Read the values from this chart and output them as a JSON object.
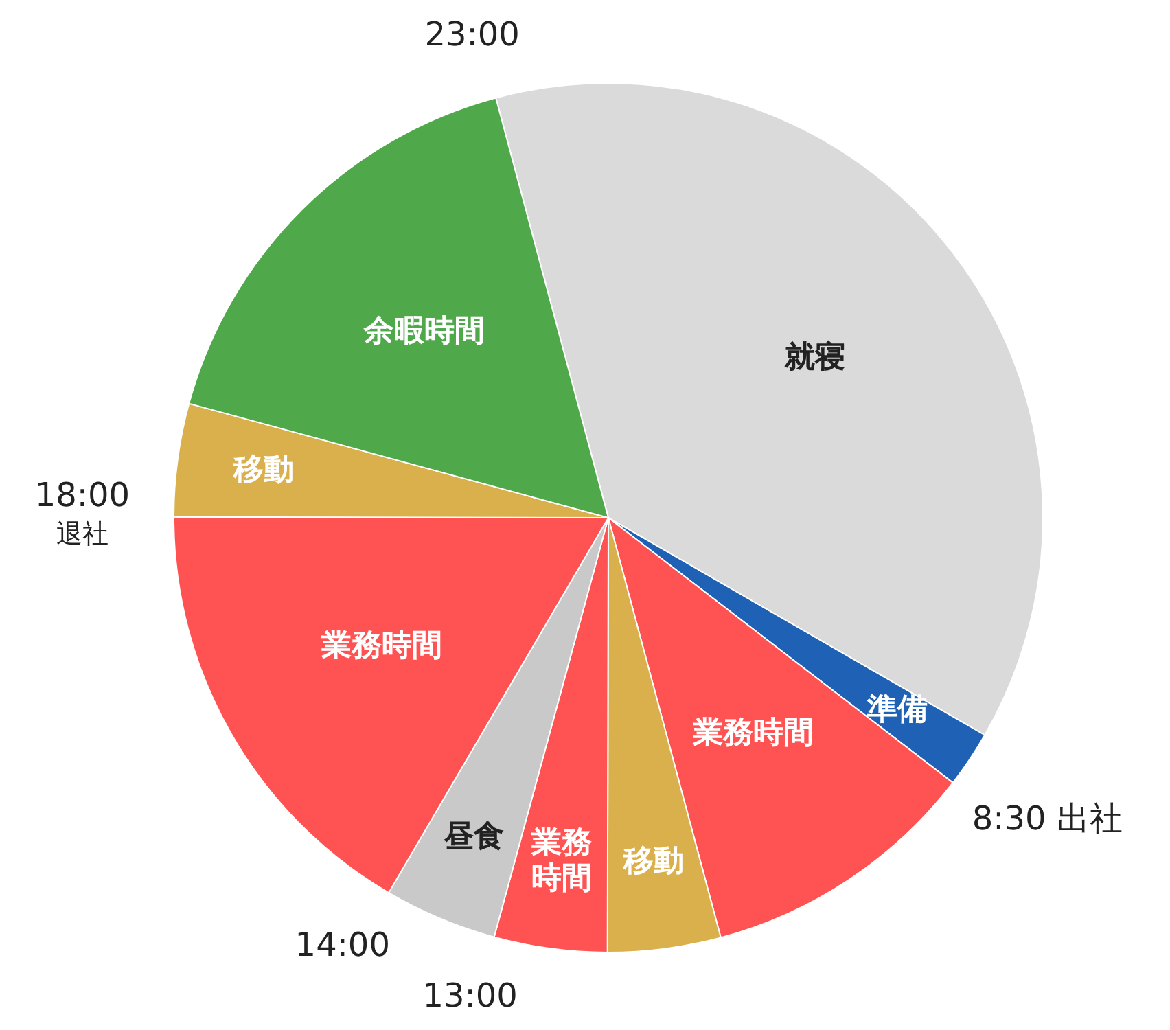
{
  "chart_data": {
    "type": "pie",
    "categories": [
      "就寝",
      "準備",
      "業務時間",
      "移動",
      "業務時間",
      "昼食",
      "業務時間",
      "移動",
      "余暇時間"
    ],
    "values": [
      37.5,
      2.1,
      10.4,
      4.2,
      4.2,
      4.2,
      16.6,
      4.2,
      16.6
    ],
    "colors": [
      "#dadada",
      "#1f62b5",
      "#ff5252",
      "#d9b04c",
      "#ff5252",
      "#c9c9c9",
      "#ff5252",
      "#d9b04c",
      "#4fa84a"
    ],
    "annotations": [
      "23:00",
      "8:30 出社",
      "13:00",
      "14:00",
      "18:00\n退社"
    ]
  }
}
